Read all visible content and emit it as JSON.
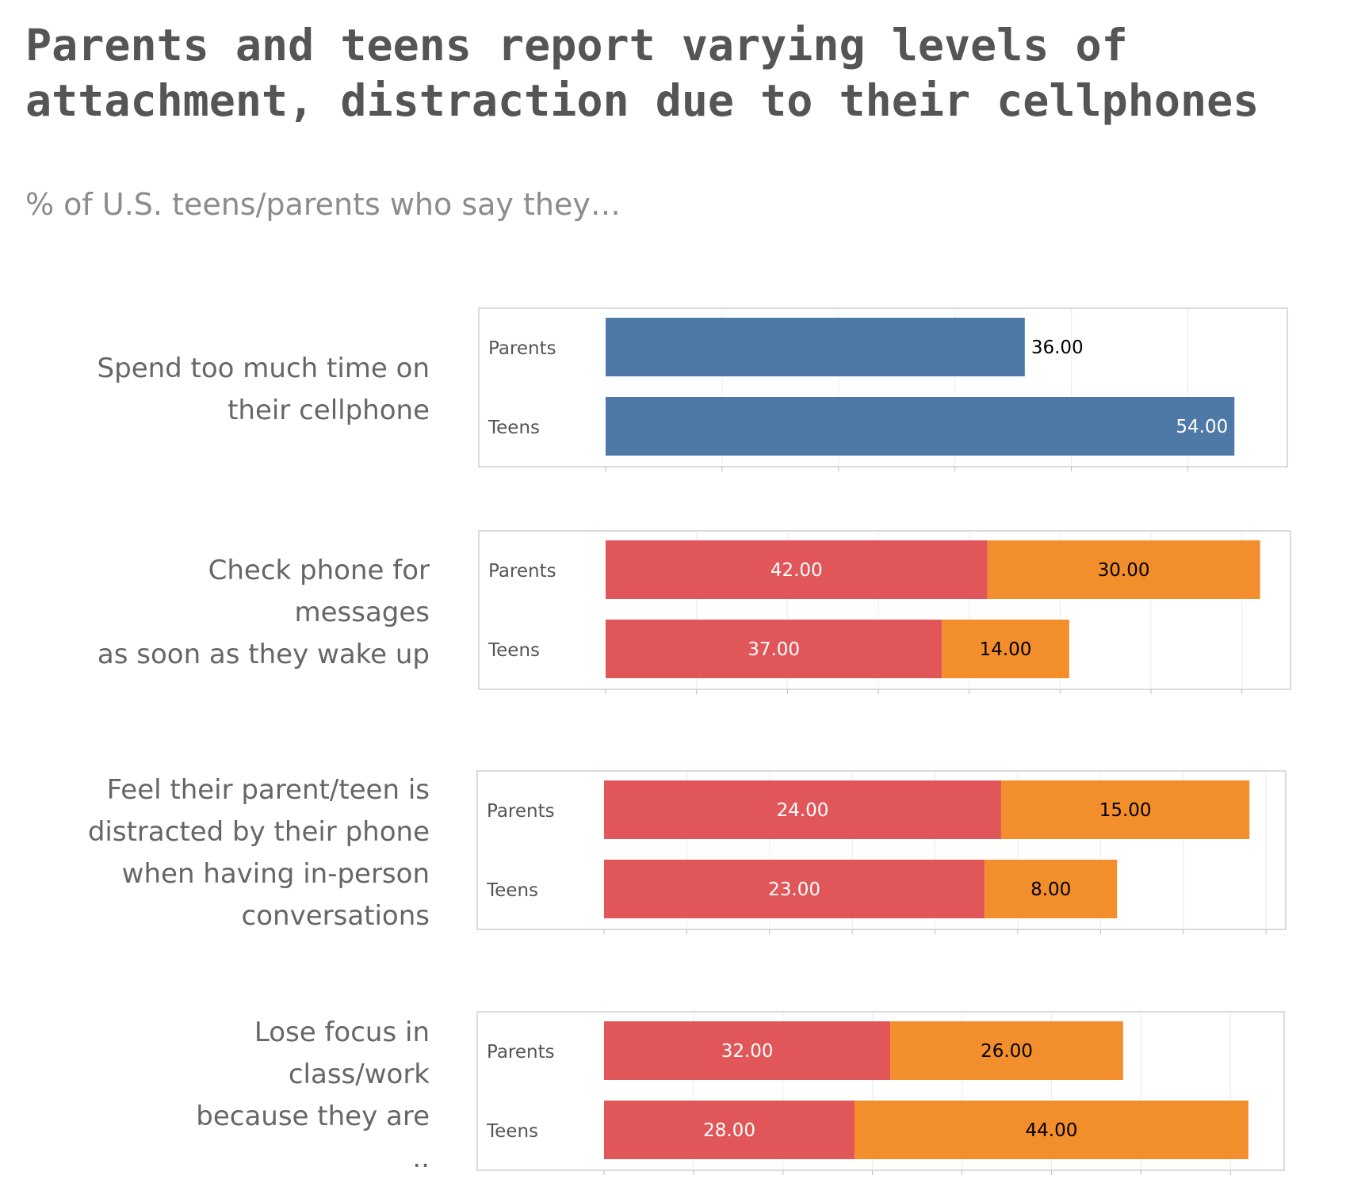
{
  "title": "Parents and teens report varying levels of attachment, distraction due to their cellphones",
  "subtitle": "% of U.S. teens/parents who say they…",
  "colors": {
    "single": "#4e79a7",
    "often": "#e15759",
    "sometimes": "#f28e2b",
    "grid": "#ececec",
    "frame": "#cfcfcf"
  },
  "chart_data": [
    {
      "type": "bar",
      "question_lines": [
        "Spend too much time on",
        "their cellphone"
      ],
      "categories": [
        "Parents",
        "Teens"
      ],
      "series": [
        {
          "values": [
            36,
            54
          ],
          "labels": [
            "36.00",
            "54.00"
          ]
        }
      ],
      "xlim": [
        0,
        58
      ]
    },
    {
      "type": "bar",
      "question_lines": [
        "Check phone for",
        "messages",
        "as soon as they wake up"
      ],
      "categories": [
        "Parents",
        "Teens"
      ],
      "series": [
        {
          "values": [
            42,
            37
          ],
          "labels": [
            "42.00",
            "37.00"
          ]
        },
        {
          "values": [
            30,
            14
          ],
          "labels": [
            "30.00",
            "14.00"
          ]
        }
      ],
      "xlim": [
        0,
        75
      ]
    },
    {
      "type": "bar",
      "question_lines": [
        "Feel their parent/teen is",
        "distracted by their phone",
        "when having in-person",
        "conversations"
      ],
      "categories": [
        "Parents",
        "Teens"
      ],
      "series": [
        {
          "values": [
            24,
            23
          ],
          "labels": [
            "24.00",
            "23.00"
          ]
        },
        {
          "values": [
            15,
            8
          ],
          "labels": [
            "15.00",
            "8.00"
          ]
        }
      ],
      "xlim": [
        0,
        41
      ]
    },
    {
      "type": "bar",
      "question_lines": [
        "Lose focus in",
        "class/work",
        "because they are",
        ".."
      ],
      "categories": [
        "Parents",
        "Teens"
      ],
      "series": [
        {
          "values": [
            32,
            28
          ],
          "labels": [
            "32.00",
            "28.00"
          ]
        },
        {
          "values": [
            26,
            44
          ],
          "labels": [
            "26.00",
            "44.00"
          ]
        }
      ],
      "xlim": [
        0,
        76
      ]
    }
  ]
}
